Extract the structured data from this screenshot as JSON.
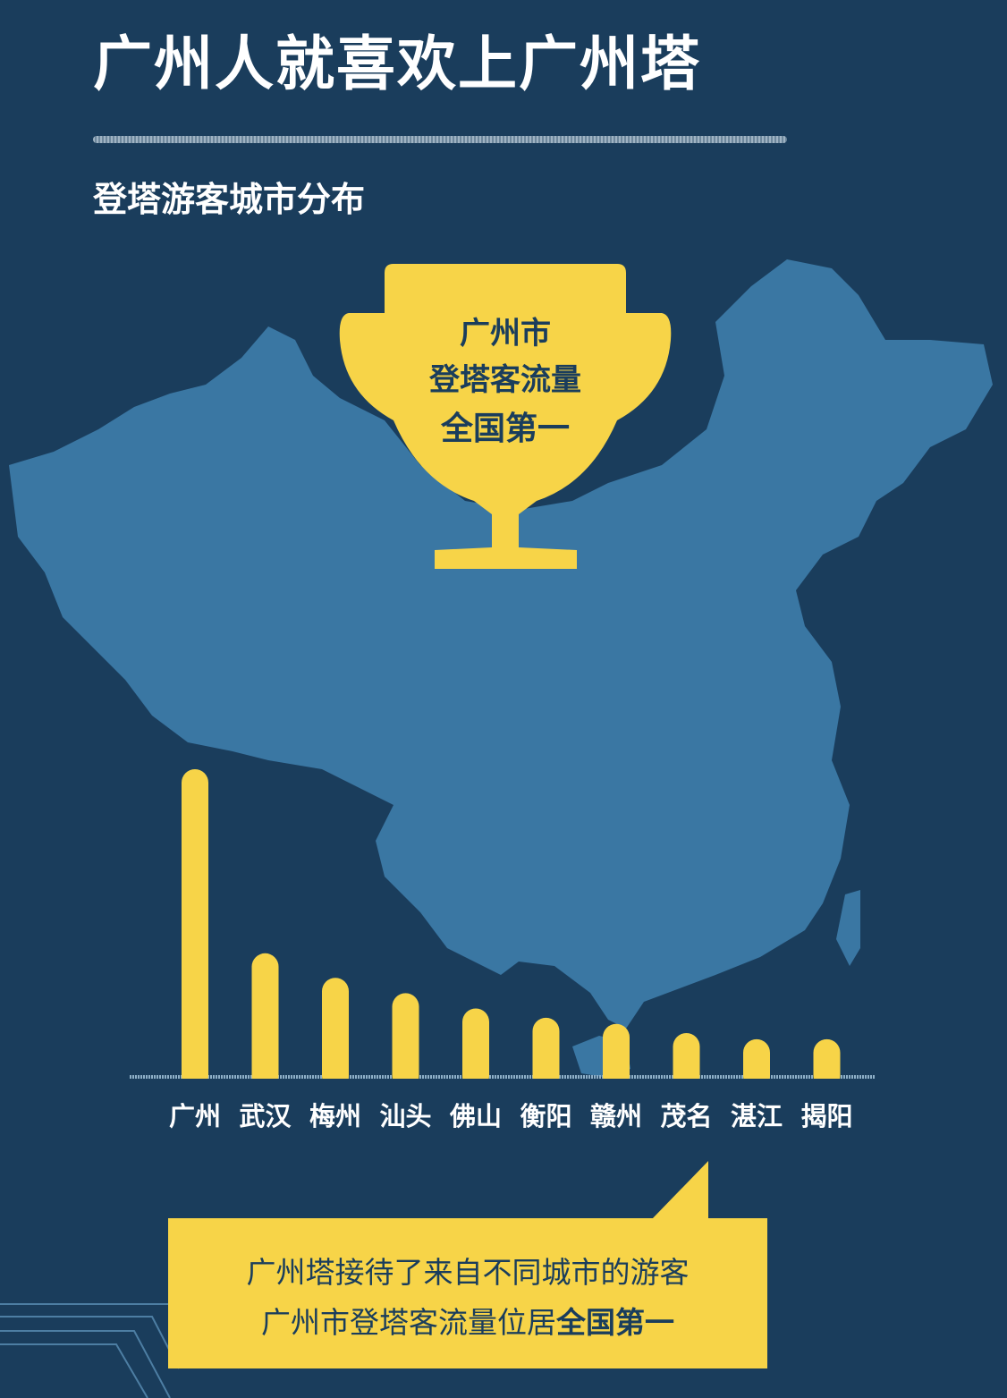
{
  "header": {
    "title": "广州人就喜欢上广州塔",
    "subtitle": "登塔游客城市分布"
  },
  "trophy": {
    "line1": "广州市",
    "line2": "登塔客流量",
    "line3": "全国第一"
  },
  "callout": {
    "line1": "广州塔接待了来自不同城市的游客",
    "line2_normal": "广州市登塔客流量位居",
    "line2_bold": "全国第一"
  },
  "colors": {
    "background": "#1a3d5c",
    "map": "#3a77a3",
    "accent": "#f7d448",
    "text": "#ffffff"
  },
  "chart_data": {
    "type": "bar",
    "title": "登塔游客城市分布",
    "categories": [
      "广州",
      "武汉",
      "梅州",
      "汕头",
      "佛山",
      "衡阳",
      "赣州",
      "茂名",
      "湛江",
      "揭阳"
    ],
    "values": [
      100,
      40,
      32,
      27,
      22,
      19,
      17,
      14,
      12,
      12
    ],
    "value_note": "relative bar heights, no axis printed",
    "xlabel": "",
    "ylabel": "",
    "ylim": [
      0,
      100
    ],
    "grid": false
  }
}
